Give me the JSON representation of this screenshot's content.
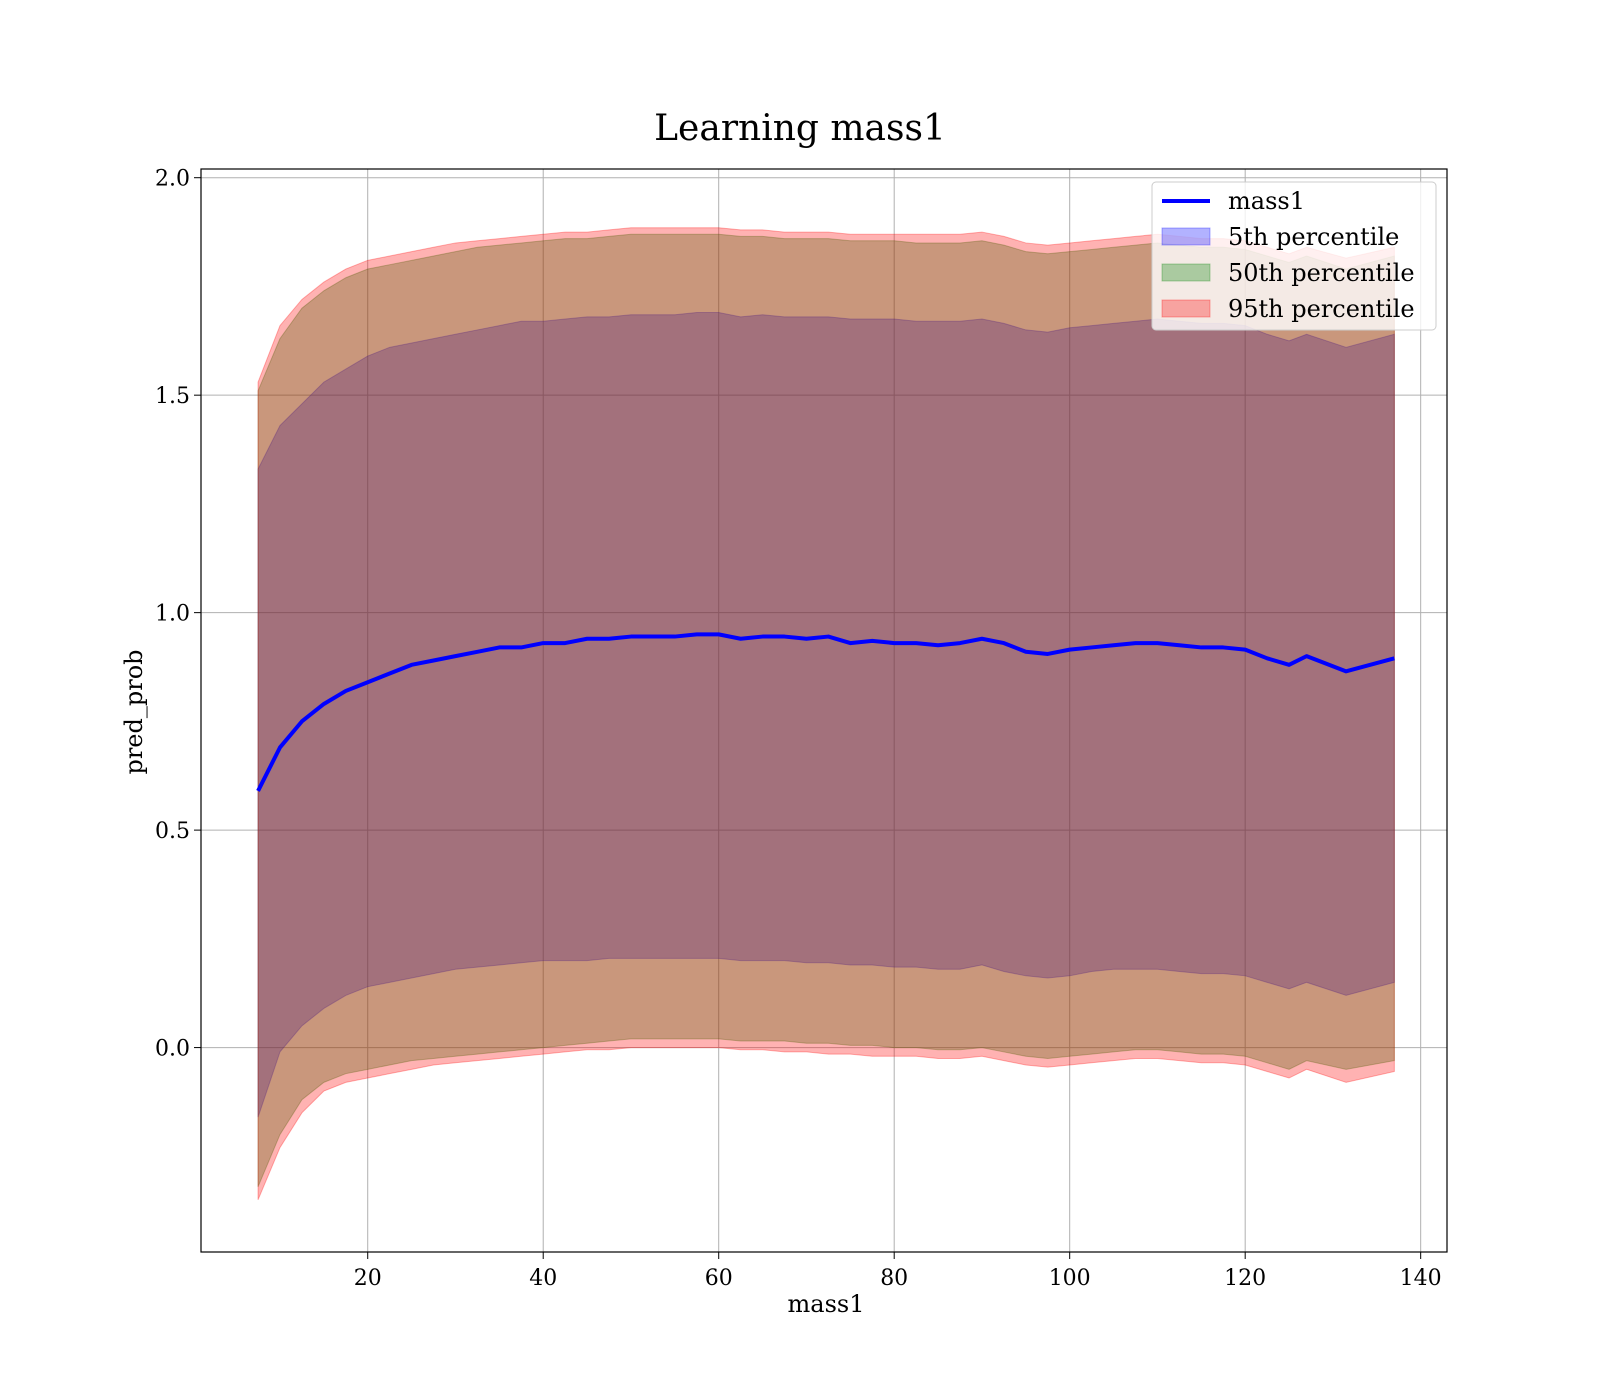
{
  "chart_data": {
    "type": "line",
    "title": "Learning mass1",
    "xlabel": "mass1",
    "ylabel": "pred_prob",
    "xlim": [
      1,
      143
    ],
    "ylim": [
      -0.47,
      2.02
    ],
    "xticks": [
      20,
      40,
      60,
      80,
      100,
      120,
      140
    ],
    "yticks": [
      0.0,
      0.5,
      1.0,
      1.5,
      2.0
    ],
    "xtick_labels": [
      "20",
      "40",
      "60",
      "80",
      "100",
      "120",
      "140"
    ],
    "ytick_labels": [
      "0.0",
      "0.5",
      "1.0",
      "1.5",
      "2.0"
    ],
    "grid": true,
    "legend_position": "top-right",
    "x": [
      7.5,
      10,
      12.5,
      15,
      17.5,
      20,
      22.5,
      25,
      27.5,
      30,
      32.5,
      35,
      37.5,
      40,
      42.5,
      45,
      47.5,
      50,
      52.5,
      55,
      57.5,
      60,
      62.5,
      65,
      67.5,
      70,
      72.5,
      75,
      77.5,
      80,
      82.5,
      85,
      87.5,
      90,
      92.5,
      95,
      97.5,
      100,
      102.5,
      105,
      107.5,
      110,
      112.5,
      115,
      117.5,
      120,
      122.5,
      125,
      127,
      131.5,
      137
    ],
    "series": [
      {
        "name": "mass1",
        "kind": "line",
        "color": "#0000ff",
        "values": [
          0.59,
          0.69,
          0.75,
          0.79,
          0.82,
          0.84,
          0.86,
          0.88,
          0.89,
          0.9,
          0.91,
          0.92,
          0.92,
          0.93,
          0.93,
          0.94,
          0.94,
          0.945,
          0.945,
          0.945,
          0.95,
          0.95,
          0.94,
          0.945,
          0.945,
          0.94,
          0.945,
          0.93,
          0.935,
          0.93,
          0.93,
          0.925,
          0.93,
          0.94,
          0.93,
          0.91,
          0.905,
          0.915,
          0.92,
          0.925,
          0.93,
          0.93,
          0.925,
          0.92,
          0.92,
          0.915,
          0.895,
          0.88,
          0.9,
          0.865,
          0.895
        ]
      },
      {
        "name": "5th percentile",
        "kind": "band",
        "color": "#0000ff",
        "lower": [
          -0.16,
          -0.01,
          0.05,
          0.09,
          0.12,
          0.14,
          0.15,
          0.16,
          0.17,
          0.18,
          0.185,
          0.19,
          0.195,
          0.2,
          0.2,
          0.2,
          0.205,
          0.205,
          0.205,
          0.205,
          0.205,
          0.205,
          0.2,
          0.2,
          0.2,
          0.195,
          0.195,
          0.19,
          0.19,
          0.185,
          0.185,
          0.18,
          0.18,
          0.19,
          0.175,
          0.165,
          0.16,
          0.165,
          0.175,
          0.18,
          0.18,
          0.18,
          0.175,
          0.17,
          0.17,
          0.165,
          0.15,
          0.135,
          0.15,
          0.12,
          0.15
        ],
        "upper": [
          1.33,
          1.43,
          1.48,
          1.53,
          1.56,
          1.59,
          1.61,
          1.62,
          1.63,
          1.64,
          1.65,
          1.66,
          1.67,
          1.67,
          1.675,
          1.68,
          1.68,
          1.685,
          1.685,
          1.685,
          1.69,
          1.69,
          1.68,
          1.685,
          1.68,
          1.68,
          1.68,
          1.675,
          1.675,
          1.675,
          1.67,
          1.67,
          1.67,
          1.675,
          1.665,
          1.65,
          1.645,
          1.655,
          1.66,
          1.665,
          1.67,
          1.675,
          1.67,
          1.665,
          1.665,
          1.66,
          1.64,
          1.625,
          1.64,
          1.61,
          1.64
        ]
      },
      {
        "name": "50th percentile",
        "kind": "band",
        "color": "#008000",
        "lower": [
          -0.32,
          -0.2,
          -0.12,
          -0.08,
          -0.06,
          -0.05,
          -0.04,
          -0.03,
          -0.025,
          -0.02,
          -0.015,
          -0.01,
          -0.005,
          0.0,
          0.005,
          0.01,
          0.015,
          0.02,
          0.02,
          0.02,
          0.02,
          0.02,
          0.015,
          0.015,
          0.015,
          0.01,
          0.01,
          0.005,
          0.005,
          0.0,
          0.0,
          -0.005,
          -0.005,
          0.0,
          -0.01,
          -0.02,
          -0.025,
          -0.02,
          -0.015,
          -0.01,
          -0.005,
          -0.005,
          -0.01,
          -0.015,
          -0.015,
          -0.02,
          -0.035,
          -0.05,
          -0.03,
          -0.05,
          -0.03
        ],
        "upper": [
          1.51,
          1.63,
          1.7,
          1.74,
          1.77,
          1.79,
          1.8,
          1.81,
          1.82,
          1.83,
          1.84,
          1.845,
          1.85,
          1.855,
          1.86,
          1.86,
          1.865,
          1.87,
          1.87,
          1.87,
          1.87,
          1.87,
          1.865,
          1.865,
          1.86,
          1.86,
          1.86,
          1.855,
          1.855,
          1.855,
          1.85,
          1.85,
          1.85,
          1.855,
          1.845,
          1.83,
          1.825,
          1.83,
          1.835,
          1.84,
          1.845,
          1.85,
          1.845,
          1.84,
          1.84,
          1.835,
          1.82,
          1.805,
          1.82,
          1.79,
          1.82
        ]
      },
      {
        "name": "95th percentile",
        "kind": "band",
        "color": "#ff0000",
        "lower": [
          -0.35,
          -0.23,
          -0.15,
          -0.1,
          -0.08,
          -0.07,
          -0.06,
          -0.05,
          -0.04,
          -0.035,
          -0.03,
          -0.025,
          -0.02,
          -0.015,
          -0.01,
          -0.005,
          -0.005,
          0.0,
          0.0,
          0.0,
          0.0,
          0.0,
          -0.005,
          -0.005,
          -0.01,
          -0.01,
          -0.015,
          -0.015,
          -0.02,
          -0.02,
          -0.02,
          -0.025,
          -0.025,
          -0.02,
          -0.03,
          -0.04,
          -0.045,
          -0.04,
          -0.035,
          -0.03,
          -0.025,
          -0.025,
          -0.03,
          -0.035,
          -0.035,
          -0.04,
          -0.055,
          -0.07,
          -0.05,
          -0.08,
          -0.055
        ],
        "upper": [
          1.53,
          1.66,
          1.72,
          1.76,
          1.79,
          1.81,
          1.82,
          1.83,
          1.84,
          1.85,
          1.855,
          1.86,
          1.865,
          1.87,
          1.875,
          1.875,
          1.88,
          1.885,
          1.885,
          1.885,
          1.885,
          1.885,
          1.88,
          1.88,
          1.875,
          1.875,
          1.875,
          1.87,
          1.87,
          1.87,
          1.87,
          1.87,
          1.87,
          1.875,
          1.865,
          1.85,
          1.845,
          1.85,
          1.855,
          1.86,
          1.865,
          1.87,
          1.865,
          1.86,
          1.86,
          1.855,
          1.84,
          1.825,
          1.84,
          1.815,
          1.84
        ]
      }
    ]
  }
}
